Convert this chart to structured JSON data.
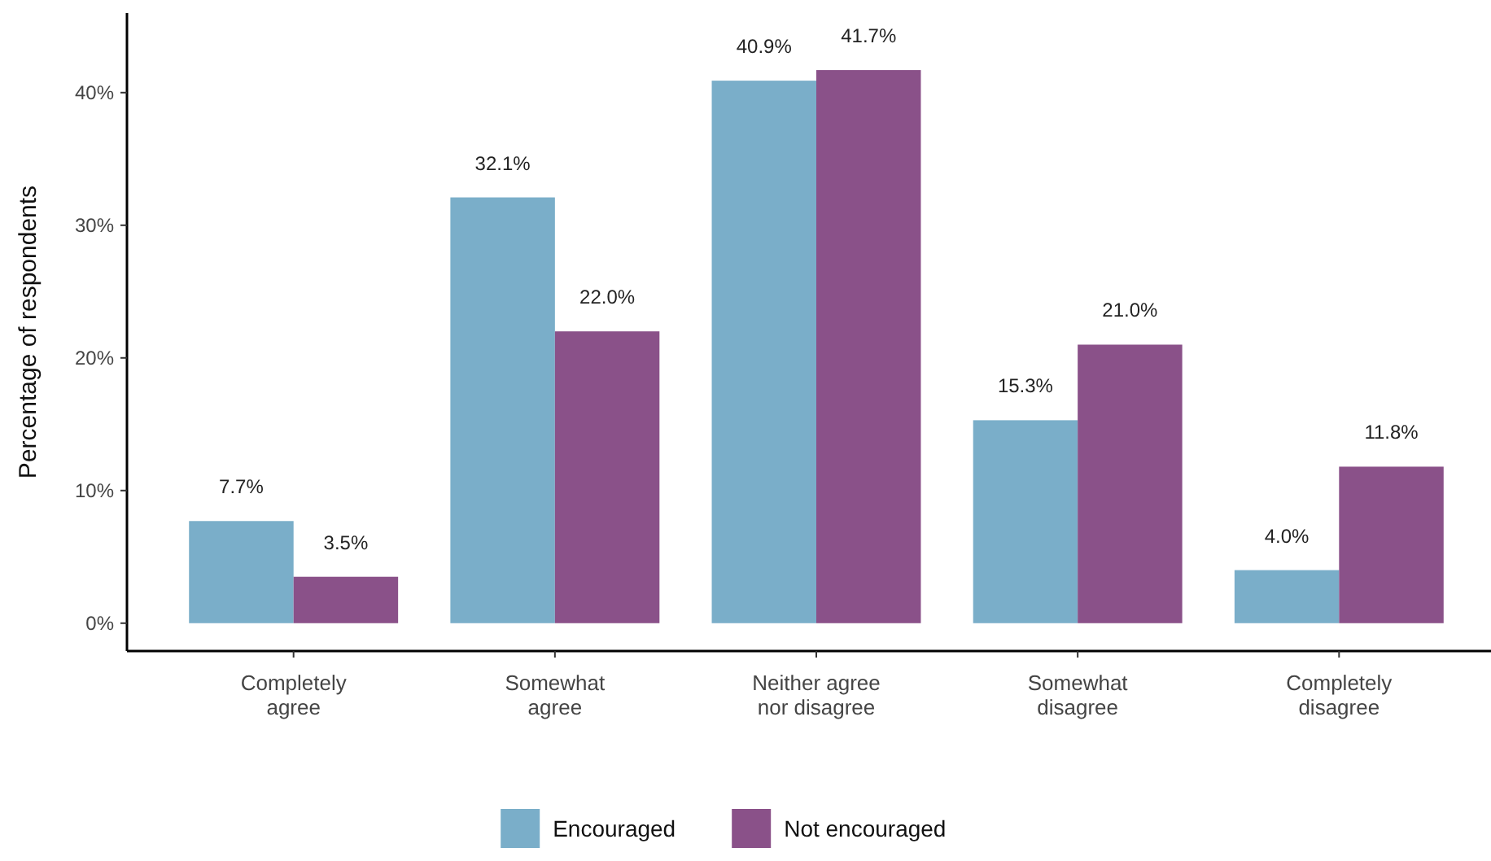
{
  "chart_data": {
    "type": "bar",
    "ylabel": "Percentage of respondents",
    "categories": [
      "Completely\nagree",
      "Somewhat\nagree",
      "Neither agree\nnor disagree",
      "Somewhat\ndisagree",
      "Completely\ndisagree"
    ],
    "series": [
      {
        "name": "Encouraged",
        "color": "#7aaec9",
        "values": [
          7.7,
          32.1,
          40.9,
          15.3,
          4.0
        ],
        "value_labels": [
          "7.7%",
          "32.1%",
          "40.9%",
          "15.3%",
          "4.0%"
        ]
      },
      {
        "name": "Not encouraged",
        "color": "#8a5189",
        "values": [
          3.5,
          22.0,
          41.7,
          21.0,
          11.8
        ],
        "value_labels": [
          "3.5%",
          "22.0%",
          "41.7%",
          "21.0%",
          "11.8%"
        ]
      }
    ],
    "ylim": [
      -2.1,
      46
    ],
    "yticks": [
      {
        "value": 0,
        "label": "0%"
      },
      {
        "value": 10,
        "label": "10%"
      },
      {
        "value": 20,
        "label": "20%"
      },
      {
        "value": 30,
        "label": "30%"
      },
      {
        "value": 40,
        "label": "40%"
      }
    ],
    "grid": false,
    "legend": "bottom"
  }
}
